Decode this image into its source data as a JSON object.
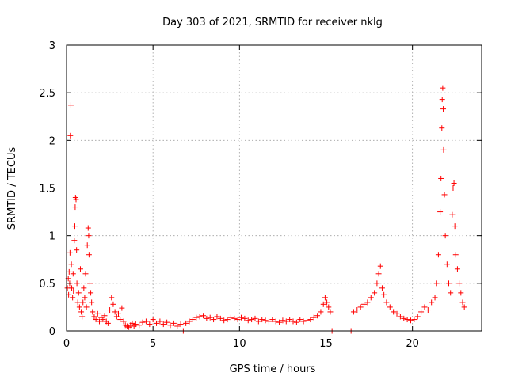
{
  "chart_data": {
    "type": "scatter",
    "title": "Day 303 of 2021, SRMTID for receiver nklg",
    "xlabel": "GPS time / hours",
    "ylabel": "SRMTID / TECUs",
    "xlim": [
      0,
      24
    ],
    "ylim": [
      0,
      3
    ],
    "xticks": [
      0,
      5,
      10,
      15,
      20
    ],
    "xtick_labels": [
      "0",
      "5",
      "10",
      "15",
      "20"
    ],
    "yticks": [
      0,
      0.5,
      1,
      1.5,
      2,
      2.5,
      3
    ],
    "ytick_labels": [
      "0",
      "0.5",
      "1",
      "1.5",
      "2",
      "2.5",
      "3"
    ],
    "grid": true,
    "marker": "+",
    "series": [
      {
        "name": "SRMTID",
        "color": "#ff0000",
        "points": [
          [
            0.05,
            0.45
          ],
          [
            0.1,
            0.55
          ],
          [
            0.12,
            0.38
          ],
          [
            0.15,
            0.62
          ],
          [
            0.18,
            0.5
          ],
          [
            0.2,
            0.82
          ],
          [
            0.22,
            2.05
          ],
          [
            0.25,
            2.37
          ],
          [
            0.28,
            0.7
          ],
          [
            0.3,
            0.45
          ],
          [
            0.35,
            0.35
          ],
          [
            0.38,
            0.6
          ],
          [
            0.4,
            0.42
          ],
          [
            0.45,
            0.95
          ],
          [
            0.48,
            1.1
          ],
          [
            0.5,
            1.3
          ],
          [
            0.52,
            1.4
          ],
          [
            0.55,
            1.38
          ],
          [
            0.58,
            0.85
          ],
          [
            0.6,
            0.5
          ],
          [
            0.65,
            0.3
          ],
          [
            0.7,
            0.4
          ],
          [
            0.75,
            0.25
          ],
          [
            0.8,
            0.65
          ],
          [
            0.85,
            0.2
          ],
          [
            0.9,
            0.15
          ],
          [
            0.95,
            0.3
          ],
          [
            1.0,
            0.45
          ],
          [
            1.05,
            0.35
          ],
          [
            1.1,
            0.6
          ],
          [
            1.15,
            0.25
          ],
          [
            1.2,
            0.9
          ],
          [
            1.25,
            1.08
          ],
          [
            1.28,
            1.0
          ],
          [
            1.3,
            0.8
          ],
          [
            1.35,
            0.5
          ],
          [
            1.4,
            0.4
          ],
          [
            1.45,
            0.3
          ],
          [
            1.5,
            0.2
          ],
          [
            1.6,
            0.15
          ],
          [
            1.7,
            0.12
          ],
          [
            1.8,
            0.18
          ],
          [
            1.9,
            0.1
          ],
          [
            2.0,
            0.14
          ],
          [
            2.1,
            0.12
          ],
          [
            2.2,
            0.16
          ],
          [
            2.3,
            0.1
          ],
          [
            2.4,
            0.08
          ],
          [
            2.5,
            0.22
          ],
          [
            2.6,
            0.35
          ],
          [
            2.7,
            0.28
          ],
          [
            2.8,
            0.2
          ],
          [
            2.9,
            0.15
          ],
          [
            3.0,
            0.18
          ],
          [
            3.1,
            0.12
          ],
          [
            3.2,
            0.24
          ],
          [
            3.3,
            0.1
          ],
          [
            3.4,
            0.06
          ],
          [
            3.5,
            0.05
          ],
          [
            3.6,
            0.04
          ],
          [
            3.7,
            0.06
          ],
          [
            3.8,
            0.08
          ],
          [
            3.9,
            0.05
          ],
          [
            4.0,
            0.07
          ],
          [
            4.2,
            0.06
          ],
          [
            4.4,
            0.09
          ],
          [
            4.6,
            0.1
          ],
          [
            4.8,
            0.07
          ],
          [
            5.0,
            0.12
          ],
          [
            5.2,
            0.08
          ],
          [
            5.4,
            0.1
          ],
          [
            5.6,
            0.07
          ],
          [
            5.8,
            0.09
          ],
          [
            6.0,
            0.06
          ],
          [
            6.2,
            0.08
          ],
          [
            6.4,
            0.05
          ],
          [
            6.6,
            0.07
          ],
          [
            6.75,
            0.0
          ],
          [
            6.9,
            0.08
          ],
          [
            7.1,
            0.1
          ],
          [
            7.3,
            0.12
          ],
          [
            7.5,
            0.14
          ],
          [
            7.7,
            0.15
          ],
          [
            7.9,
            0.16
          ],
          [
            8.1,
            0.13
          ],
          [
            8.3,
            0.14
          ],
          [
            8.5,
            0.12
          ],
          [
            8.7,
            0.15
          ],
          [
            8.9,
            0.13
          ],
          [
            9.1,
            0.11
          ],
          [
            9.3,
            0.12
          ],
          [
            9.5,
            0.14
          ],
          [
            9.7,
            0.13
          ],
          [
            9.9,
            0.12
          ],
          [
            10.1,
            0.14
          ],
          [
            10.3,
            0.13
          ],
          [
            10.5,
            0.11
          ],
          [
            10.7,
            0.12
          ],
          [
            10.9,
            0.13
          ],
          [
            11.1,
            0.1
          ],
          [
            11.3,
            0.12
          ],
          [
            11.5,
            0.11
          ],
          [
            11.7,
            0.1
          ],
          [
            11.9,
            0.12
          ],
          [
            12.1,
            0.1
          ],
          [
            12.3,
            0.09
          ],
          [
            12.5,
            0.11
          ],
          [
            12.7,
            0.1
          ],
          [
            12.9,
            0.12
          ],
          [
            13.1,
            0.1
          ],
          [
            13.3,
            0.09
          ],
          [
            13.5,
            0.12
          ],
          [
            13.7,
            0.1
          ],
          [
            13.9,
            0.11
          ],
          [
            14.1,
            0.12
          ],
          [
            14.3,
            0.14
          ],
          [
            14.5,
            0.16
          ],
          [
            14.7,
            0.2
          ],
          [
            14.85,
            0.28
          ],
          [
            14.95,
            0.35
          ],
          [
            15.05,
            0.3
          ],
          [
            15.15,
            0.25
          ],
          [
            15.25,
            0.2
          ],
          [
            15.35,
            0.0
          ],
          [
            16.45,
            0.0
          ],
          [
            16.6,
            0.2
          ],
          [
            16.8,
            0.22
          ],
          [
            17.0,
            0.25
          ],
          [
            17.2,
            0.28
          ],
          [
            17.4,
            0.3
          ],
          [
            17.6,
            0.35
          ],
          [
            17.8,
            0.4
          ],
          [
            17.95,
            0.5
          ],
          [
            18.05,
            0.6
          ],
          [
            18.15,
            0.68
          ],
          [
            18.25,
            0.45
          ],
          [
            18.35,
            0.38
          ],
          [
            18.5,
            0.3
          ],
          [
            18.7,
            0.25
          ],
          [
            18.9,
            0.2
          ],
          [
            19.1,
            0.18
          ],
          [
            19.3,
            0.15
          ],
          [
            19.5,
            0.13
          ],
          [
            19.7,
            0.12
          ],
          [
            19.9,
            0.11
          ],
          [
            20.1,
            0.12
          ],
          [
            20.3,
            0.15
          ],
          [
            20.5,
            0.2
          ],
          [
            20.7,
            0.25
          ],
          [
            20.9,
            0.22
          ],
          [
            21.1,
            0.3
          ],
          [
            21.3,
            0.35
          ],
          [
            21.4,
            0.5
          ],
          [
            21.5,
            0.8
          ],
          [
            21.6,
            1.25
          ],
          [
            21.65,
            1.6
          ],
          [
            21.7,
            2.13
          ],
          [
            21.72,
            2.43
          ],
          [
            21.75,
            2.55
          ],
          [
            21.78,
            2.33
          ],
          [
            21.8,
            1.9
          ],
          [
            21.85,
            1.43
          ],
          [
            21.9,
            1.0
          ],
          [
            22.0,
            0.7
          ],
          [
            22.1,
            0.5
          ],
          [
            22.2,
            0.4
          ],
          [
            22.3,
            1.22
          ],
          [
            22.35,
            1.5
          ],
          [
            22.4,
            1.55
          ],
          [
            22.45,
            1.1
          ],
          [
            22.5,
            0.8
          ],
          [
            22.6,
            0.65
          ],
          [
            22.7,
            0.5
          ],
          [
            22.8,
            0.4
          ],
          [
            22.9,
            0.3
          ],
          [
            23.0,
            0.25
          ]
        ]
      }
    ]
  }
}
